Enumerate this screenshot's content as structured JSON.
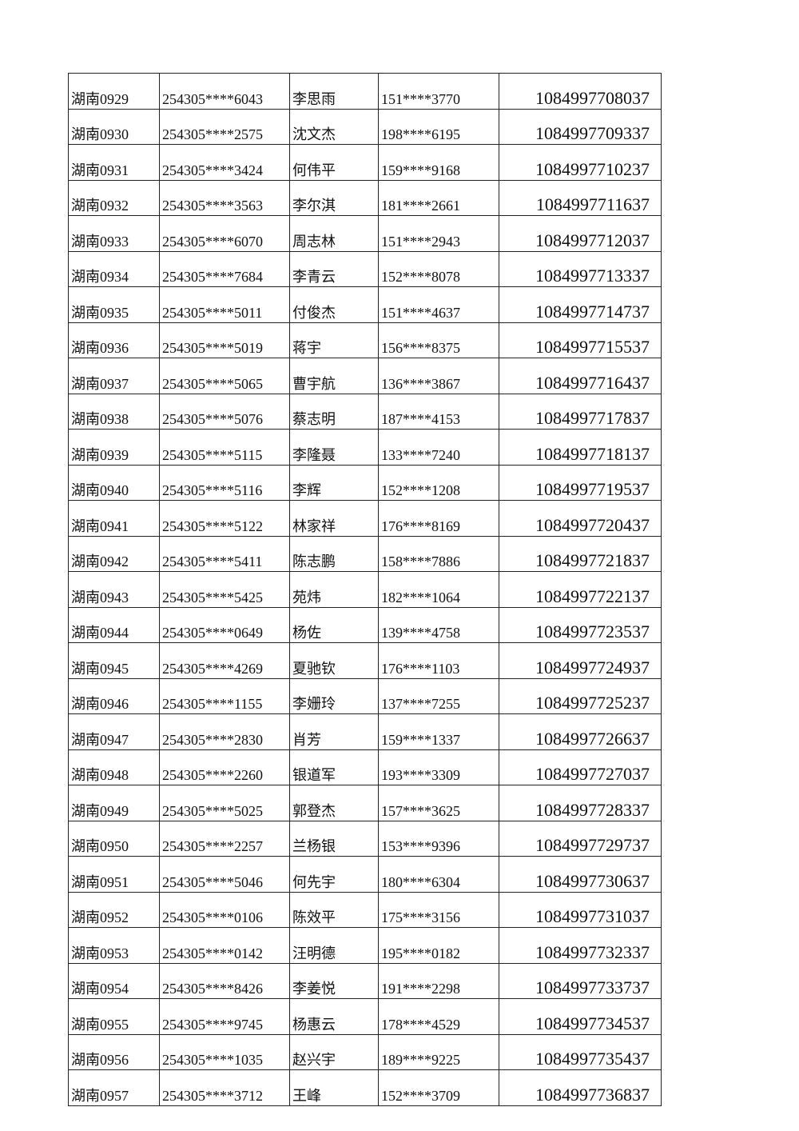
{
  "rows": [
    [
      "湖南0929",
      "254305****6043",
      "李思雨",
      "151****3770",
      "1084997708037"
    ],
    [
      "湖南0930",
      "254305****2575",
      "沈文杰",
      "198****6195",
      "1084997709337"
    ],
    [
      "湖南0931",
      "254305****3424",
      "何伟平",
      "159****9168",
      "1084997710237"
    ],
    [
      "湖南0932",
      "254305****3563",
      "李尔淇",
      "181****2661",
      "1084997711637"
    ],
    [
      "湖南0933",
      "254305****6070",
      "周志林",
      "151****2943",
      "1084997712037"
    ],
    [
      "湖南0934",
      "254305****7684",
      "李青云",
      "152****8078",
      "1084997713337"
    ],
    [
      "湖南0935",
      "254305****5011",
      "付俊杰",
      "151****4637",
      "1084997714737"
    ],
    [
      "湖南0936",
      "254305****5019",
      "蒋宇",
      "156****8375",
      "1084997715537"
    ],
    [
      "湖南0937",
      "254305****5065",
      "曹宇航",
      "136****3867",
      "1084997716437"
    ],
    [
      "湖南0938",
      "254305****5076",
      "蔡志明",
      "187****4153",
      "1084997717837"
    ],
    [
      "湖南0939",
      "254305****5115",
      "李隆聂",
      "133****7240",
      "1084997718137"
    ],
    [
      "湖南0940",
      "254305****5116",
      "李辉",
      "152****1208",
      "1084997719537"
    ],
    [
      "湖南0941",
      "254305****5122",
      "林家祥",
      "176****8169",
      "1084997720437"
    ],
    [
      "湖南0942",
      "254305****5411",
      "陈志鹏",
      "158****7886",
      "1084997721837"
    ],
    [
      "湖南0943",
      "254305****5425",
      "苑炜",
      "182****1064",
      "1084997722137"
    ],
    [
      "湖南0944",
      "254305****0649",
      "杨佐",
      "139****4758",
      "1084997723537"
    ],
    [
      "湖南0945",
      "254305****4269",
      "夏驰钦",
      "176****1103",
      "1084997724937"
    ],
    [
      "湖南0946",
      "254305****1155",
      "李姗玲",
      "137****7255",
      "1084997725237"
    ],
    [
      "湖南0947",
      "254305****2830",
      "肖芳",
      "159****1337",
      "1084997726637"
    ],
    [
      "湖南0948",
      "254305****2260",
      "银道军",
      "193****3309",
      "1084997727037"
    ],
    [
      "湖南0949",
      "254305****5025",
      "郭登杰",
      "157****3625",
      "1084997728337"
    ],
    [
      "湖南0950",
      "254305****2257",
      "兰杨银",
      "153****9396",
      "1084997729737"
    ],
    [
      "湖南0951",
      "254305****5046",
      "何先宇",
      "180****6304",
      "1084997730637"
    ],
    [
      "湖南0952",
      "254305****0106",
      "陈效平",
      "175****3156",
      "1084997731037"
    ],
    [
      "湖南0953",
      "254305****0142",
      "汪明德",
      "195****0182",
      "1084997732337"
    ],
    [
      "湖南0954",
      "254305****8426",
      "李姜悦",
      "191****2298",
      "1084997733737"
    ],
    [
      "湖南0955",
      "254305****9745",
      "杨惠云",
      "178****4529",
      "1084997734537"
    ],
    [
      "湖南0956",
      "254305****1035",
      "赵兴宇",
      "189****9225",
      "1084997735437"
    ],
    [
      "湖南0957",
      "254305****3712",
      "王峰",
      "152****3709",
      "1084997736837"
    ]
  ]
}
